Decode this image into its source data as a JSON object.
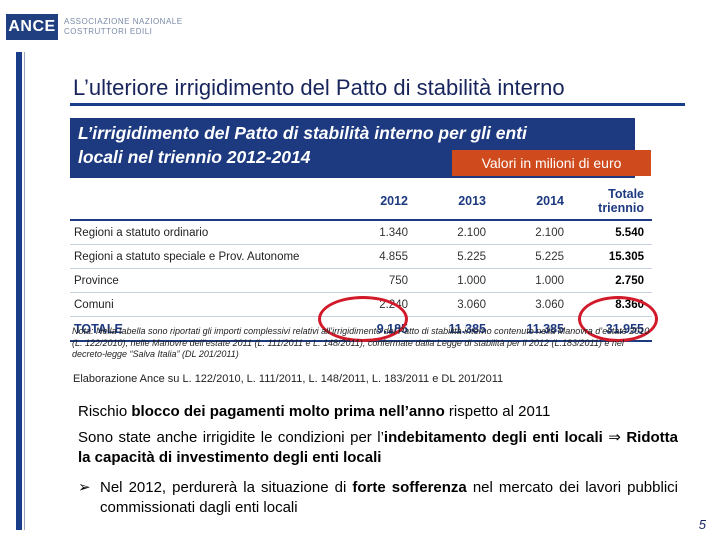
{
  "logo": {
    "name": "ANCE",
    "line1": "ASSOCIAZIONE NAZIONALE",
    "line2": "COSTRUTTORI EDILI"
  },
  "slide": {
    "title": "L’ulteriore irrigidimento del Patto di stabilità interno",
    "page_number": "5"
  },
  "box": {
    "title_line1": "L’irrigidimento del Patto di stabilità interno per gli enti",
    "title_line2": "locali nel triennio 2012-2014",
    "unit_badge": "Valori in milioni di euro"
  },
  "table": {
    "headers": [
      "",
      "2012",
      "2013",
      "2014",
      "Totale triennio"
    ],
    "rows": [
      {
        "label": "Regioni a statuto ordinario",
        "v2012": "1.340",
        "v2013": "2.100",
        "v2014": "2.100",
        "total": "5.540"
      },
      {
        "label": "Regioni a statuto speciale e Prov. Autonome",
        "v2012": "4.855",
        "v2013": "5.225",
        "v2014": "5.225",
        "total": "15.305"
      },
      {
        "label": "Province",
        "v2012": "750",
        "v2013": "1.000",
        "v2014": "1.000",
        "total": "2.750"
      },
      {
        "label": "Comuni",
        "v2012": "2.240",
        "v2013": "3.060",
        "v2014": "3.060",
        "total": "8.360"
      }
    ],
    "total_row": {
      "label": "TOTALE",
      "v2012": "9.185",
      "v2013": "11.385",
      "v2014": "11.385",
      "total": "31.955"
    },
    "note": "Nota: Nella tabella sono riportati gli importi complessivi relativi all’irrigidimento del Patto di stabilità interno contenuto nella Manovra d’estate 2010 (L. 122/2010), nelle Manovre dell’estate 2011 (L. 111/2011 e L. 148/2011), confermate dalla Legge di stabilità per il 2012 (L.183/2011) e nel decreto-legge “Salva Italia” (DL 201/2011)",
    "source": "Elaborazione Ance su L. 122/2010, L. 111/2011, L. 148/2011, L. 183/2011 e DL 201/2011"
  },
  "body": {
    "p1_a": "Rischio ",
    "p1_b": "blocco dei pagamenti molto prima nell’anno",
    "p1_c": " rispetto al 2011",
    "p2_a": "Sono state anche irrigidite le condizioni per l’",
    "p2_b": "indebitamento degli enti locali",
    "p2_arrow": " ⇒ ",
    "p2_c": "Ridotta la capacità di investimento degli enti locali",
    "bullet_icon": "➢",
    "p3_a": "Nel 2012, perdurerà la situazione di ",
    "p3_b": "forte sofferenza",
    "p3_c": " nel mercato dei lavori pubblici commissionati dagli enti locali"
  },
  "colors": {
    "navy": "#1d3a80",
    "orange": "#cf4a1c",
    "highlight_red": "#d21a2a"
  }
}
